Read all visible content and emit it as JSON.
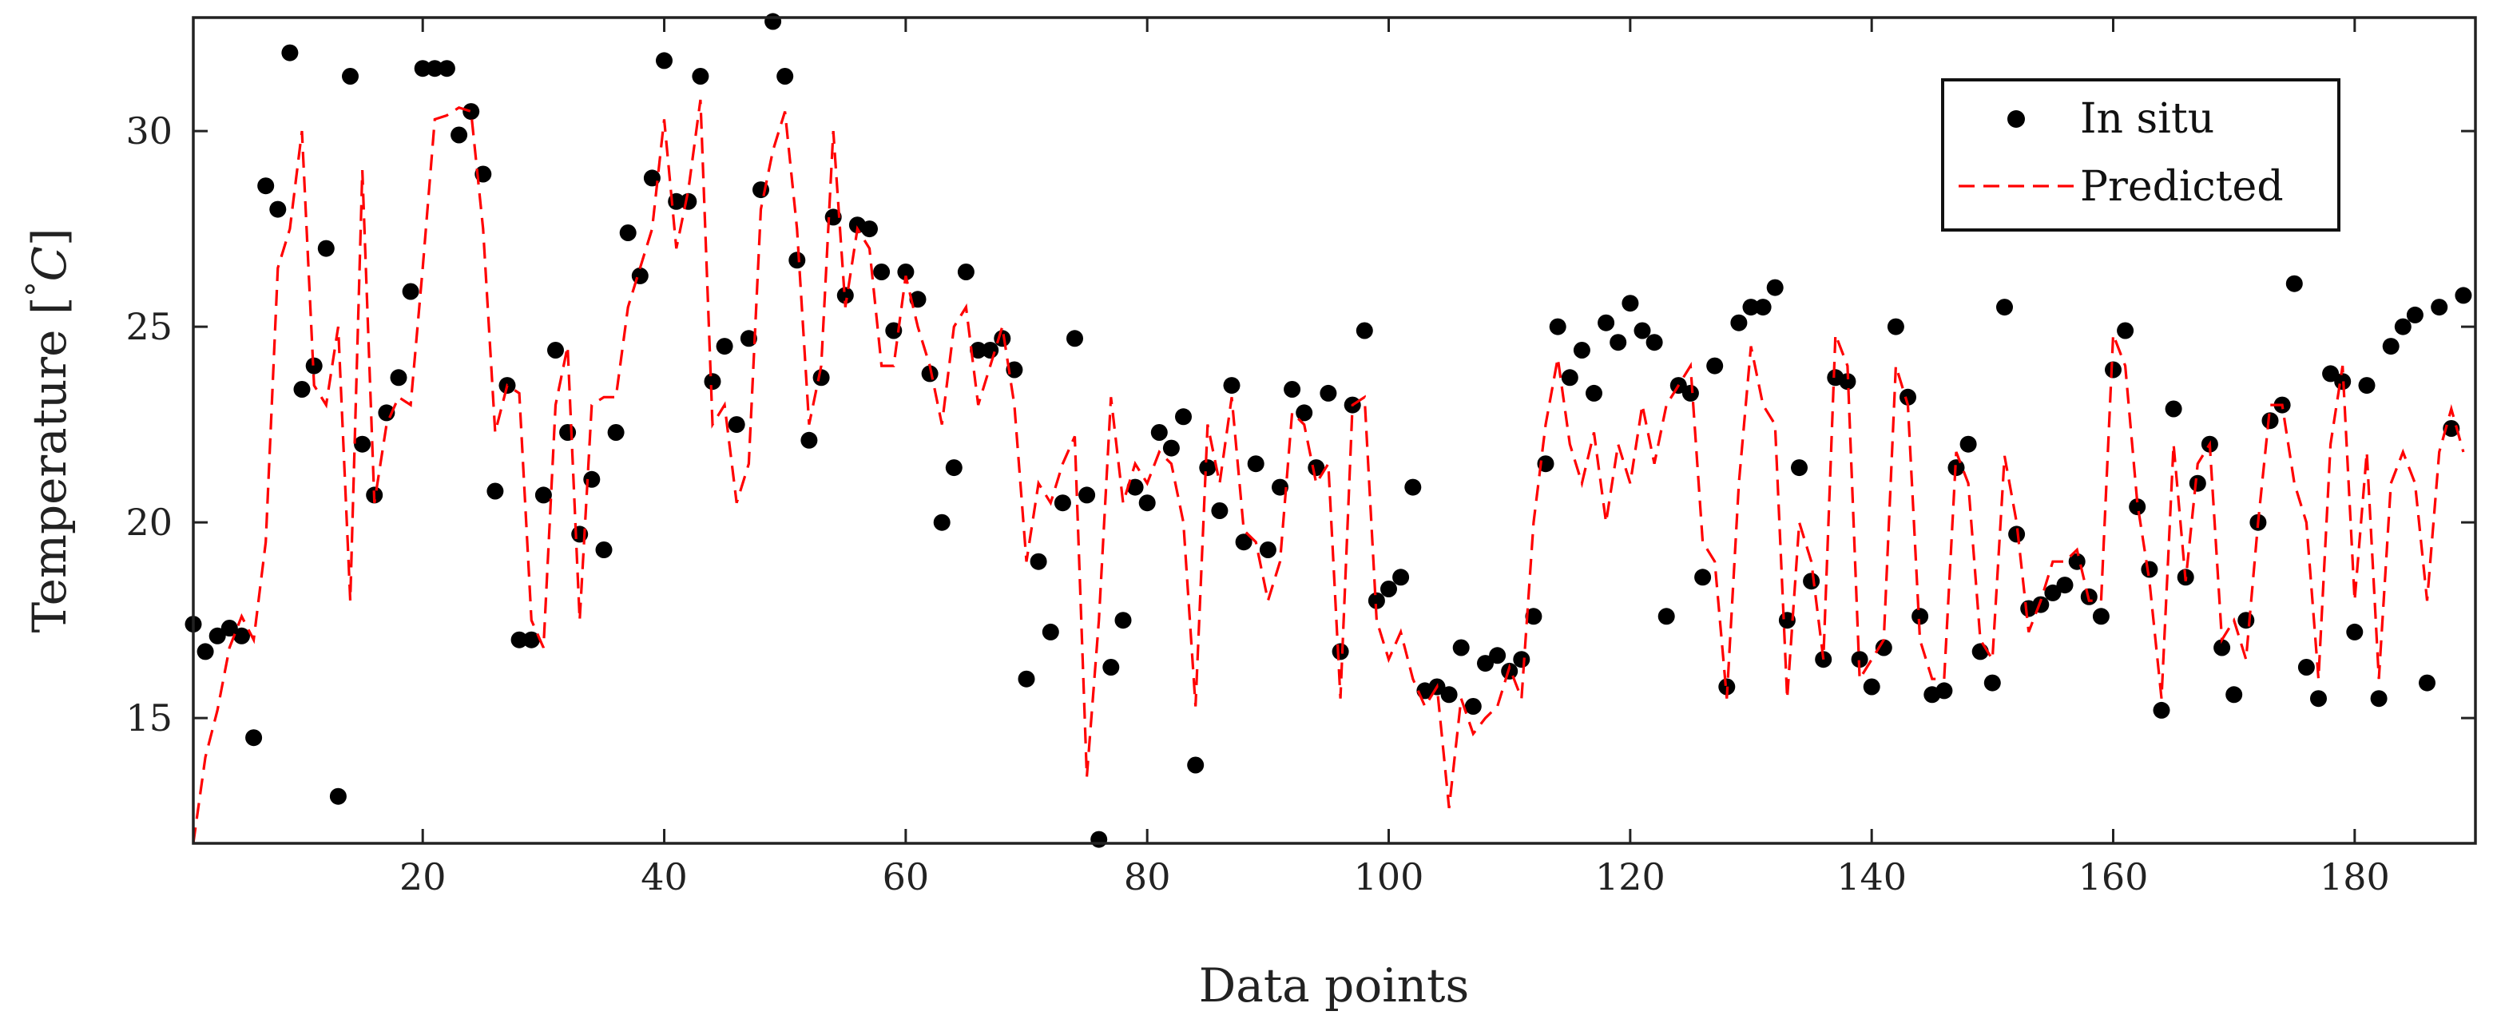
{
  "chart_data": {
    "type": "scatter+line",
    "title": "",
    "xlabel": "Data points",
    "ylabel_text": "Temperature [",
    "ylabel_degree": "°",
    "ylabel_unit": "C",
    "ylabel_close": "]",
    "xlim": [
      1,
      190
    ],
    "ylim": [
      11.8,
      32.9
    ],
    "xticks": [
      20,
      40,
      60,
      80,
      100,
      120,
      140,
      160,
      180
    ],
    "yticks": [
      15,
      20,
      25,
      30
    ],
    "legend_position": "top-right",
    "colors": {
      "in_situ": "#000000",
      "predicted": "#ff0000",
      "axes": "#222222"
    },
    "series": [
      {
        "name": "In situ",
        "style": "markers",
        "values": [
          17.4,
          16.7,
          17.1,
          17.3,
          17.1,
          14.5,
          28.6,
          28.0,
          32.0,
          23.4,
          24.0,
          27.0,
          13.0,
          31.4,
          22.0,
          20.7,
          22.8,
          23.7,
          25.9,
          31.6,
          31.6,
          31.6,
          29.9,
          30.5,
          28.9,
          20.8,
          23.5,
          17.0,
          17.0,
          20.7,
          24.4,
          22.3,
          19.7,
          21.1,
          19.3,
          22.3,
          27.4,
          26.3,
          28.8,
          31.8,
          28.2,
          28.2,
          31.4,
          23.6,
          24.5,
          22.5,
          24.7,
          28.5,
          32.8,
          31.4,
          26.7,
          22.1,
          23.7,
          27.8,
          25.8,
          27.6,
          27.5,
          26.4,
          24.9,
          26.4,
          25.7,
          23.8,
          20.0,
          21.4,
          26.4,
          24.4,
          24.4,
          24.7,
          23.9,
          16.0,
          19.0,
          17.2,
          20.5,
          24.7,
          20.7,
          11.9,
          16.3,
          17.5,
          20.9,
          20.5,
          22.3,
          21.9,
          22.7,
          13.8,
          21.4,
          20.3,
          23.5,
          19.5,
          21.5,
          19.3,
          20.9,
          23.4,
          22.8,
          21.4,
          23.3,
          16.7,
          23.0,
          24.9,
          18.0,
          18.3,
          18.6,
          20.9,
          15.7,
          15.8,
          15.6,
          16.8,
          15.3,
          16.4,
          16.6,
          16.2,
          16.5,
          17.6,
          21.5,
          25.0,
          23.7,
          24.4,
          23.3,
          25.1,
          24.6,
          25.6,
          24.9,
          24.6,
          17.6,
          23.5,
          23.3,
          18.6,
          24.0,
          15.8,
          25.1,
          25.5,
          25.5,
          26.0,
          17.5,
          21.4,
          18.5,
          16.5,
          23.7,
          23.6,
          16.5,
          15.8,
          16.8,
          25.0,
          23.2,
          17.6,
          15.6,
          15.7,
          21.4,
          22.0,
          16.7,
          15.9,
          25.5,
          19.7,
          17.8,
          17.9,
          18.2,
          18.4,
          19.0,
          18.1,
          17.6,
          23.9,
          24.9,
          20.4,
          18.8,
          15.2,
          22.9,
          18.6,
          21.0,
          22.0,
          16.8,
          15.6,
          17.5,
          20.0,
          22.6,
          23.0,
          26.1,
          16.3,
          15.5,
          23.8,
          23.6,
          17.2,
          23.5,
          15.5,
          24.5,
          25.0,
          25.3,
          15.9,
          25.5,
          22.4,
          25.8
        ]
      },
      {
        "name": "Predicted",
        "style": "dashed-line",
        "values": [
          11.8,
          14.0,
          15.2,
          16.8,
          17.6,
          17.0,
          19.5,
          26.5,
          27.5,
          30.0,
          23.5,
          23.0,
          25.0,
          18.0,
          29.0,
          20.5,
          22.5,
          23.2,
          23.0,
          26.5,
          30.3,
          30.4,
          30.6,
          30.5,
          27.5,
          22.3,
          23.5,
          23.3,
          17.5,
          16.8,
          23.0,
          24.5,
          17.5,
          23.0,
          23.2,
          23.2,
          25.5,
          26.5,
          27.5,
          30.3,
          27.0,
          28.5,
          30.8,
          22.5,
          23.0,
          20.5,
          21.5,
          28.0,
          29.5,
          30.5,
          27.5,
          22.5,
          24.0,
          30.0,
          25.5,
          27.5,
          27.0,
          24.0,
          24.0,
          26.3,
          25.0,
          24.0,
          22.5,
          25.0,
          25.5,
          23.0,
          24.0,
          25.0,
          23.0,
          19.0,
          21.0,
          20.5,
          21.5,
          22.2,
          13.5,
          17.5,
          23.2,
          20.5,
          21.5,
          21.0,
          21.8,
          21.5,
          20.0,
          15.3,
          22.5,
          21.0,
          23.2,
          19.8,
          19.5,
          18.0,
          19.0,
          22.8,
          22.5,
          21.0,
          21.5,
          15.5,
          23.0,
          23.2,
          17.5,
          16.5,
          17.2,
          16.0,
          15.3,
          15.8,
          12.7,
          15.5,
          14.6,
          15.0,
          15.3,
          16.3,
          15.5,
          20.0,
          22.5,
          24.2,
          22.0,
          21.0,
          22.3,
          20.0,
          22.0,
          21.0,
          23.0,
          21.5,
          23.0,
          23.5,
          24.0,
          19.5,
          19.0,
          15.5,
          21.0,
          24.5,
          23.0,
          22.5,
          15.5,
          20.0,
          19.0,
          16.5,
          24.8,
          24.0,
          16.0,
          16.5,
          17.0,
          24.0,
          23.0,
          17.0,
          16.0,
          16.0,
          21.8,
          21.0,
          17.0,
          16.5,
          21.7,
          20.0,
          17.2,
          18.0,
          19.0,
          19.0,
          19.3,
          18.0,
          18.0,
          24.8,
          24.0,
          20.5,
          18.5,
          15.5,
          22.0,
          18.5,
          21.5,
          22.0,
          17.0,
          17.5,
          16.5,
          20.0,
          23.0,
          23.0,
          21.0,
          20.0,
          16.0,
          22.0,
          24.0,
          18.0,
          21.8,
          16.0,
          21.0,
          21.8,
          21.0,
          18.0,
          21.8,
          22.9,
          21.8
        ]
      }
    ]
  }
}
